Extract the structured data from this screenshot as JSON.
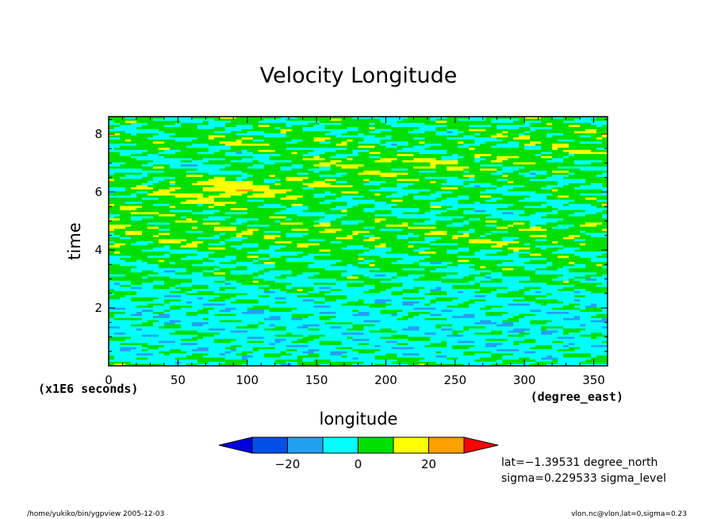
{
  "chart_data": {
    "type": "heatmap",
    "title": "Velocity Longitude",
    "xlabel": "longitude",
    "ylabel": "time",
    "x_units": "(degree_east)",
    "y_units": "(x1E6 seconds)",
    "xlim": [
      0,
      360
    ],
    "ylim": [
      0,
      8.6
    ],
    "x_ticks": [
      0,
      50,
      100,
      150,
      200,
      250,
      300,
      350
    ],
    "y_ticks": [
      2,
      4,
      6,
      8
    ],
    "colorbar": {
      "levels": [
        -30,
        -20,
        -10,
        0,
        10,
        20,
        30
      ],
      "tick_labels": [
        "−20",
        "0",
        "20"
      ],
      "tick_values": [
        -20,
        0,
        20
      ],
      "colors": [
        "#0000e0",
        "#0050e8",
        "#22a0f0",
        "#00ffff",
        "#00e000",
        "#ffff00",
        "#ffa000",
        "#ff0000"
      ]
    },
    "features": [
      {
        "lon_start": 0,
        "lon_end": 360,
        "time_start": 3.9,
        "time_end": 8.2,
        "value": 20
      },
      {
        "lon_start": 50,
        "lon_end": 120,
        "time_start": 5.3,
        "time_end": 6.8,
        "value": 25
      },
      {
        "lon_start": 150,
        "lon_end": 230,
        "time_start": 6.8,
        "time_end": 7.4,
        "value": 22
      }
    ]
  },
  "annotations": {
    "lat": "lat=−1.39531 degree_north",
    "sigma": "sigma=0.229533 sigma_level"
  },
  "footer": {
    "left": "/home/yukiko/bin/ygpview   2005-12-03",
    "right": "vlon.nc@vlon,lat=0,sigma=0.23"
  }
}
